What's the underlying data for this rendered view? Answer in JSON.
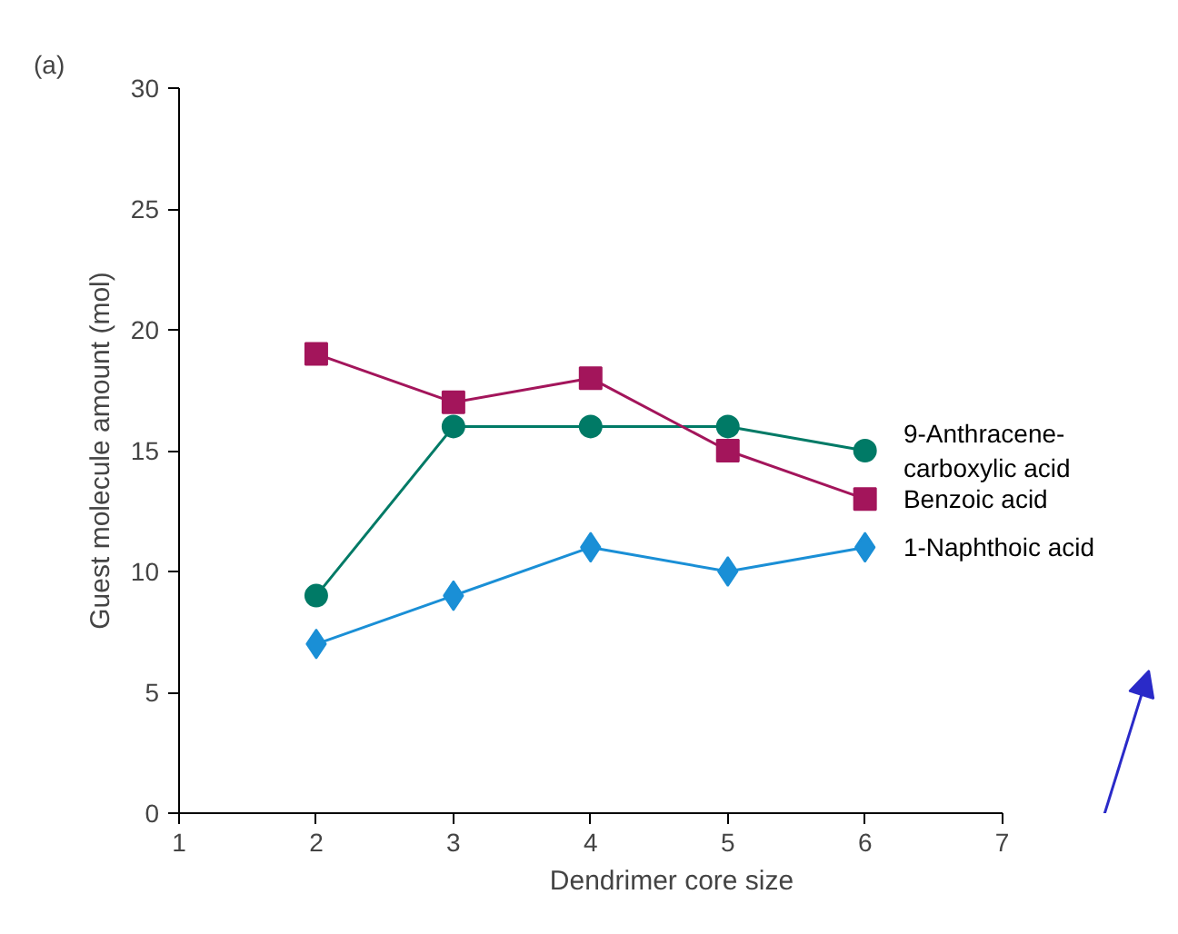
{
  "chart_data": {
    "type": "line",
    "title": "(a)",
    "xlabel": "Dendrimer core size",
    "ylabel": "Guest molecule amount (mol)",
    "x": [
      2,
      3,
      4,
      5,
      6
    ],
    "xlim": [
      1,
      7
    ],
    "xticks": [
      1,
      2,
      3,
      4,
      5,
      6,
      7
    ],
    "ylim": [
      0,
      30
    ],
    "yticks": [
      0,
      5,
      10,
      15,
      20,
      25,
      30
    ],
    "grid": false,
    "series": [
      {
        "name": "9-Anthracene-\ncarboxylic acid",
        "color": "#007a66",
        "marker": "circle",
        "values": [
          9,
          16,
          16,
          16,
          15
        ]
      },
      {
        "name": "Benzoic acid",
        "color": "#a3155b",
        "marker": "square",
        "values": [
          19,
          17,
          18,
          15,
          13
        ]
      },
      {
        "name": "1-Naphthoic acid",
        "color": "#1a8fd6",
        "marker": "diamond",
        "values": [
          7,
          9,
          11,
          10,
          11
        ]
      }
    ]
  }
}
